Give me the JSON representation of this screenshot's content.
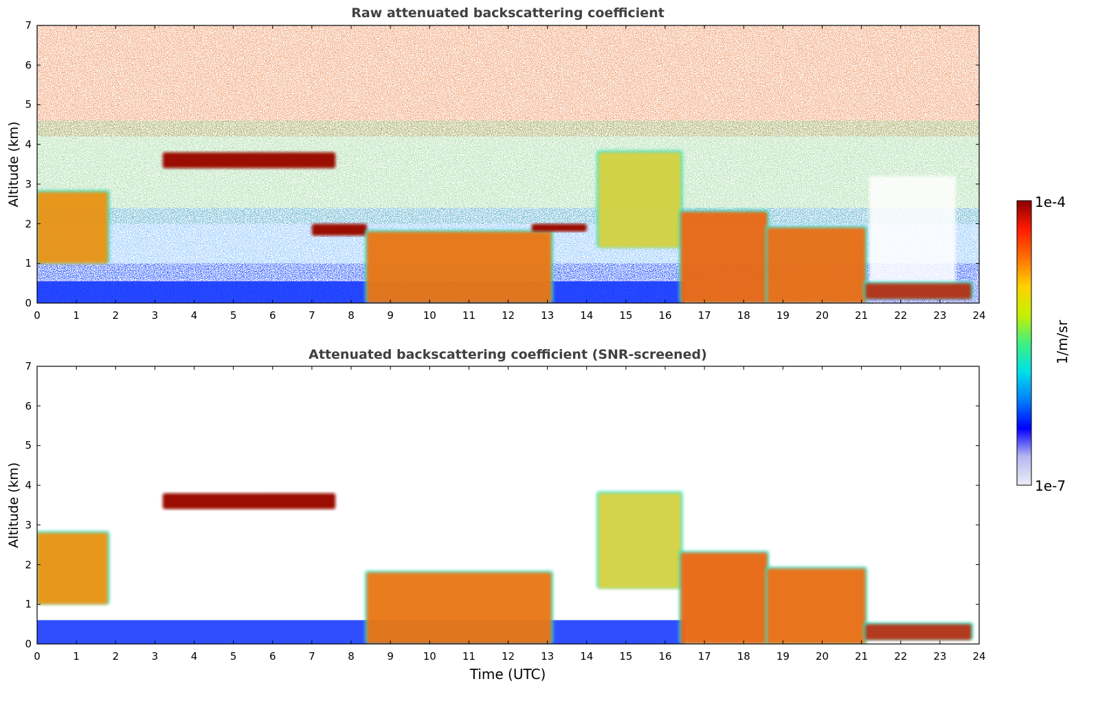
{
  "chart_data": [
    {
      "type": "heatmap",
      "title": "Raw attenuated backscattering coefficient",
      "ylabel": "Altitude (km)",
      "xlabel": "",
      "xlim": [
        0,
        24
      ],
      "ylim": [
        0,
        7
      ],
      "x_ticks": [
        "0",
        "1",
        "2",
        "3",
        "4",
        "5",
        "6",
        "7",
        "8",
        "9",
        "10",
        "11",
        "12",
        "13",
        "14",
        "15",
        "16",
        "17",
        "18",
        "19",
        "20",
        "21",
        "22",
        "23",
        "24"
      ],
      "y_ticks": [
        "0",
        "1",
        "2",
        "3",
        "4",
        "5",
        "6",
        "7"
      ],
      "features": [
        {
          "feature": "boundary-layer-noise",
          "start": 0,
          "end": 16.5,
          "top": 0.55
        },
        {
          "feature": "low-cloud",
          "start": 0,
          "end": 1.8,
          "base": 1.0,
          "top": 2.8
        },
        {
          "feature": "mid-cloud-layer",
          "start": 3.2,
          "end": 7.6,
          "base": 3.4,
          "top": 3.8
        },
        {
          "feature": "cloud-layer",
          "start": 7.0,
          "end": 8.4,
          "base": 1.7,
          "top": 2.0
        },
        {
          "feature": "precipitation",
          "start": 8.4,
          "end": 13.1,
          "base": 0.0,
          "top": 1.8
        },
        {
          "feature": "cloud-layer",
          "start": 12.6,
          "end": 14.0,
          "base": 1.8,
          "top": 2.0
        },
        {
          "feature": "virga",
          "start": 14.3,
          "end": 16.4,
          "base": 1.4,
          "top": 3.8
        },
        {
          "feature": "convective-cloud",
          "start": 16.4,
          "end": 18.6,
          "base": 0.0,
          "top": 2.3
        },
        {
          "feature": "boundary-layer-cloud",
          "start": 18.6,
          "end": 21.1,
          "base": 0.0,
          "top": 1.9
        },
        {
          "feature": "stratus",
          "start": 21.1,
          "end": 23.8,
          "base": 0.1,
          "top": 0.5
        }
      ]
    },
    {
      "type": "heatmap",
      "title": "Attenuated backscattering coefficient (SNR-screened)",
      "ylabel": "Altitude (km)",
      "xlabel": "Time (UTC)",
      "xlim": [
        0,
        24
      ],
      "ylim": [
        0,
        7
      ],
      "x_ticks": [
        "0",
        "1",
        "2",
        "3",
        "4",
        "5",
        "6",
        "7",
        "8",
        "9",
        "10",
        "11",
        "12",
        "13",
        "14",
        "15",
        "16",
        "17",
        "18",
        "19",
        "20",
        "21",
        "22",
        "23",
        "24"
      ],
      "y_ticks": [
        "0",
        "1",
        "2",
        "3",
        "4",
        "5",
        "6",
        "7"
      ],
      "features": [
        {
          "feature": "boundary-layer",
          "start": 0,
          "end": 16.5,
          "top": 0.6
        },
        {
          "feature": "low-cloud",
          "start": 0,
          "end": 1.8,
          "base": 1.0,
          "top": 2.8
        },
        {
          "feature": "mid-cloud-layer",
          "start": 3.2,
          "end": 7.6,
          "base": 3.4,
          "top": 3.8
        },
        {
          "feature": "precipitation",
          "start": 8.4,
          "end": 13.1,
          "base": 0.0,
          "top": 1.8
        },
        {
          "feature": "virga",
          "start": 14.3,
          "end": 16.4,
          "base": 1.4,
          "top": 3.8
        },
        {
          "feature": "convective-cloud",
          "start": 16.4,
          "end": 18.6,
          "base": 0.0,
          "top": 2.3
        },
        {
          "feature": "boundary-layer-cloud",
          "start": 18.6,
          "end": 21.1,
          "base": 0.0,
          "top": 1.9
        },
        {
          "feature": "stratus",
          "start": 21.1,
          "end": 23.8,
          "base": 0.1,
          "top": 0.5
        }
      ]
    }
  ],
  "colorbar": {
    "label": "1/m/sr",
    "max_label": "1e-4",
    "min_label": "1e-7",
    "scale": "log",
    "colormap": "jet",
    "colors": [
      "#ececf8",
      "#b8b8f0",
      "#0000ff",
      "#0080ff",
      "#00e0e8",
      "#40f080",
      "#c8f000",
      "#ffd000",
      "#ff7000",
      "#ff1a00",
      "#8b0000"
    ]
  }
}
